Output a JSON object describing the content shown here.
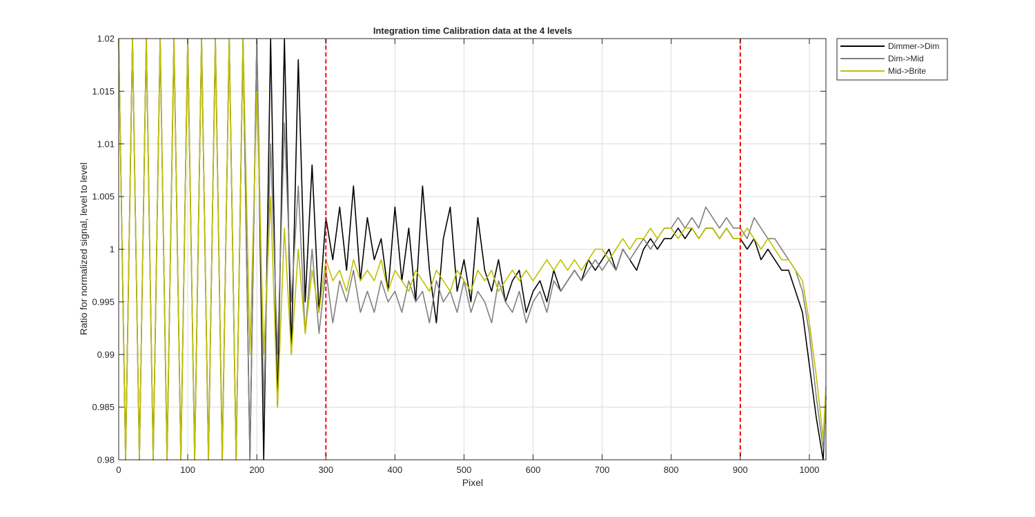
{
  "chart_data": {
    "type": "line",
    "title": "Integration time Calibration data at the 4 levels",
    "xlabel": "Pixel",
    "ylabel": "Ratio for normalized signal, level to level",
    "xlim": [
      0,
      1024
    ],
    "ylim": [
      0.98,
      1.02
    ],
    "xticks": [
      0,
      100,
      200,
      300,
      400,
      500,
      600,
      700,
      800,
      900,
      1000
    ],
    "yticks": [
      0.98,
      0.985,
      0.99,
      0.995,
      1,
      1.005,
      1.01,
      1.015,
      1.02
    ],
    "x_tick_labels": [
      "0",
      "100",
      "200",
      "300",
      "400",
      "500",
      "600",
      "700",
      "800",
      "900",
      "1000"
    ],
    "y_tick_labels": [
      "0.98",
      "0.985",
      "0.99",
      "0.995",
      "1",
      "1.005",
      "1.01",
      "1.015",
      "1.02"
    ],
    "grid": true,
    "legend_position": "outside-top-right",
    "vlines": [
      {
        "x": 300,
        "color": "#ff0000",
        "style": "dashed"
      },
      {
        "x": 900,
        "color": "#ff0000",
        "style": "dashed"
      }
    ],
    "series": [
      {
        "name": "Dimmer->Dim",
        "color": "#000000",
        "x": [
          0,
          10,
          20,
          30,
          40,
          50,
          60,
          70,
          80,
          90,
          100,
          110,
          120,
          130,
          140,
          150,
          160,
          170,
          180,
          190,
          200,
          210,
          220,
          230,
          240,
          250,
          260,
          270,
          280,
          290,
          300,
          310,
          320,
          330,
          340,
          350,
          360,
          370,
          380,
          390,
          400,
          410,
          420,
          430,
          440,
          450,
          460,
          470,
          480,
          490,
          500,
          510,
          520,
          530,
          540,
          550,
          560,
          570,
          580,
          590,
          600,
          610,
          620,
          630,
          640,
          650,
          660,
          670,
          680,
          690,
          700,
          710,
          720,
          730,
          740,
          750,
          760,
          770,
          780,
          790,
          800,
          810,
          820,
          830,
          840,
          850,
          860,
          870,
          880,
          890,
          900,
          910,
          920,
          930,
          940,
          950,
          960,
          970,
          980,
          990,
          1000,
          1010,
          1020,
          1024
        ],
        "y": [
          1.02,
          0.98,
          1.02,
          0.98,
          1.02,
          0.98,
          1.02,
          0.98,
          1.02,
          0.98,
          1.02,
          0.98,
          1.02,
          0.98,
          1.02,
          0.98,
          1.02,
          0.98,
          1.02,
          0.98,
          1.02,
          0.98,
          1.02,
          0.985,
          1.02,
          0.99,
          1.018,
          0.995,
          1.008,
          0.994,
          1.003,
          0.999,
          1.004,
          0.998,
          1.006,
          0.997,
          1.003,
          0.999,
          1.001,
          0.996,
          1.004,
          0.997,
          1.002,
          0.995,
          1.006,
          0.998,
          0.993,
          1.001,
          1.004,
          0.996,
          0.999,
          0.995,
          1.003,
          0.998,
          0.996,
          0.999,
          0.995,
          0.997,
          0.998,
          0.994,
          0.996,
          0.997,
          0.995,
          0.998,
          0.996,
          0.997,
          0.998,
          0.997,
          0.999,
          0.998,
          0.999,
          1.0,
          0.998,
          1.0,
          0.999,
          0.998,
          1.0,
          1.001,
          1.0,
          1.001,
          1.001,
          1.002,
          1.001,
          1.002,
          1.001,
          1.002,
          1.002,
          1.001,
          1.002,
          1.001,
          1.001,
          1.0,
          1.001,
          0.999,
          1.0,
          0.999,
          0.998,
          0.998,
          0.996,
          0.994,
          0.989,
          0.984,
          0.98,
          0.986
        ]
      },
      {
        "name": "Dim->Mid",
        "color": "#808080",
        "x": [
          0,
          10,
          20,
          30,
          40,
          50,
          60,
          70,
          80,
          90,
          100,
          110,
          120,
          130,
          140,
          150,
          160,
          170,
          180,
          190,
          200,
          210,
          220,
          230,
          240,
          250,
          260,
          270,
          280,
          290,
          300,
          310,
          320,
          330,
          340,
          350,
          360,
          370,
          380,
          390,
          400,
          410,
          420,
          430,
          440,
          450,
          460,
          470,
          480,
          490,
          500,
          510,
          520,
          530,
          540,
          550,
          560,
          570,
          580,
          590,
          600,
          610,
          620,
          630,
          640,
          650,
          660,
          670,
          680,
          690,
          700,
          710,
          720,
          730,
          740,
          750,
          760,
          770,
          780,
          790,
          800,
          810,
          820,
          830,
          840,
          850,
          860,
          870,
          880,
          890,
          900,
          910,
          920,
          930,
          940,
          950,
          960,
          970,
          980,
          990,
          1000,
          1010,
          1020,
          1024
        ],
        "y": [
          1.02,
          0.98,
          1.02,
          0.98,
          1.02,
          0.98,
          1.02,
          0.98,
          1.02,
          0.98,
          1.02,
          0.98,
          1.02,
          0.98,
          1.02,
          0.98,
          1.02,
          0.98,
          1.02,
          0.98,
          1.02,
          0.985,
          1.01,
          0.99,
          1.012,
          0.995,
          1.006,
          0.992,
          1.0,
          0.992,
          0.998,
          0.993,
          0.997,
          0.995,
          0.998,
          0.994,
          0.996,
          0.994,
          0.997,
          0.995,
          0.996,
          0.994,
          0.997,
          0.995,
          0.996,
          0.993,
          0.997,
          0.995,
          0.996,
          0.994,
          0.997,
          0.994,
          0.996,
          0.995,
          0.993,
          0.997,
          0.995,
          0.994,
          0.996,
          0.993,
          0.995,
          0.996,
          0.994,
          0.997,
          0.996,
          0.997,
          0.998,
          0.997,
          0.998,
          0.999,
          0.998,
          0.999,
          0.998,
          1.0,
          0.999,
          1.0,
          1.001,
          1.0,
          1.001,
          1.002,
          1.002,
          1.003,
          1.002,
          1.003,
          1.002,
          1.004,
          1.003,
          1.002,
          1.003,
          1.002,
          1.002,
          1.001,
          1.003,
          1.002,
          1.001,
          1.001,
          1.0,
          0.999,
          0.998,
          0.996,
          0.992,
          0.986,
          0.981,
          0.985
        ]
      },
      {
        "name": "Mid->Brite",
        "color": "#bfbf00",
        "x": [
          0,
          10,
          20,
          30,
          40,
          50,
          60,
          70,
          80,
          90,
          100,
          110,
          120,
          130,
          140,
          150,
          160,
          170,
          180,
          190,
          200,
          210,
          220,
          230,
          240,
          250,
          260,
          270,
          280,
          290,
          300,
          310,
          320,
          330,
          340,
          350,
          360,
          370,
          380,
          390,
          400,
          410,
          420,
          430,
          440,
          450,
          460,
          470,
          480,
          490,
          500,
          510,
          520,
          530,
          540,
          550,
          560,
          570,
          580,
          590,
          600,
          610,
          620,
          630,
          640,
          650,
          660,
          670,
          680,
          690,
          700,
          710,
          720,
          730,
          740,
          750,
          760,
          770,
          780,
          790,
          800,
          810,
          820,
          830,
          840,
          850,
          860,
          870,
          880,
          890,
          900,
          910,
          920,
          930,
          940,
          950,
          960,
          970,
          980,
          990,
          1000,
          1010,
          1020,
          1024
        ],
        "y": [
          1.02,
          0.98,
          1.02,
          0.98,
          1.02,
          0.98,
          1.02,
          0.98,
          1.02,
          0.98,
          1.02,
          0.98,
          1.02,
          0.98,
          1.02,
          0.98,
          1.02,
          0.98,
          1.02,
          0.99,
          1.015,
          0.99,
          1.005,
          0.985,
          1.002,
          0.99,
          1.0,
          0.992,
          0.998,
          0.994,
          0.999,
          0.997,
          0.998,
          0.996,
          0.999,
          0.997,
          0.998,
          0.997,
          0.999,
          0.996,
          0.998,
          0.997,
          0.996,
          0.998,
          0.997,
          0.996,
          0.998,
          0.997,
          0.996,
          0.998,
          0.997,
          0.996,
          0.998,
          0.997,
          0.998,
          0.996,
          0.997,
          0.998,
          0.997,
          0.998,
          0.997,
          0.998,
          0.999,
          0.998,
          0.999,
          0.998,
          0.999,
          0.998,
          0.999,
          1.0,
          1.0,
          0.999,
          1.0,
          1.001,
          1.0,
          1.001,
          1.001,
          1.002,
          1.001,
          1.002,
          1.002,
          1.001,
          1.002,
          1.002,
          1.001,
          1.002,
          1.002,
          1.001,
          1.002,
          1.001,
          1.001,
          1.002,
          1.001,
          1.0,
          1.001,
          1.0,
          0.999,
          0.999,
          0.998,
          0.997,
          0.993,
          0.988,
          0.982,
          0.987
        ]
      }
    ]
  }
}
